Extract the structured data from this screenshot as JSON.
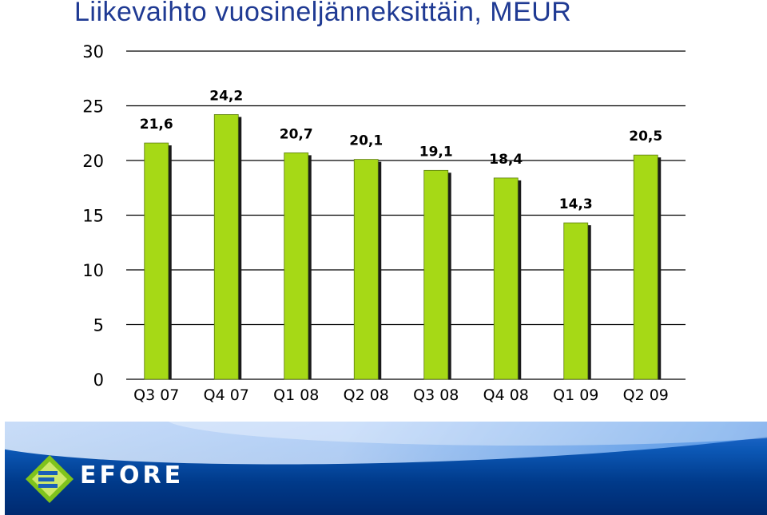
{
  "title": "Liikevaihto vuosineljänneksittäin, MEUR",
  "colors": {
    "title": "#1f3a93",
    "bar": "#a6d916",
    "bar_shadow": "#1a1a1a",
    "footer": "#0c58b6"
  },
  "footer": {
    "logo_text": "EFORE",
    "logo_icon": "efore-logo-icon"
  },
  "chart_data": {
    "type": "bar",
    "title": "Liikevaihto vuosineljänneksittäin, MEUR",
    "xlabel": "",
    "ylabel": "",
    "categories": [
      "Q3 07",
      "Q4 07",
      "Q1 08",
      "Q2 08",
      "Q3 08",
      "Q4 08",
      "Q1 09",
      "Q2 09"
    ],
    "values": [
      21.6,
      24.2,
      20.7,
      20.1,
      19.1,
      18.4,
      14.3,
      20.5
    ],
    "data_labels": [
      "21,6",
      "24,2",
      "20,7",
      "20,1",
      "19,1",
      "18,4",
      "14,3",
      "20,5"
    ],
    "yticks": [
      "0",
      "5",
      "10",
      "15",
      "20",
      "25",
      "30"
    ],
    "ylim": [
      0,
      30
    ],
    "grid": true,
    "legend": "none"
  }
}
